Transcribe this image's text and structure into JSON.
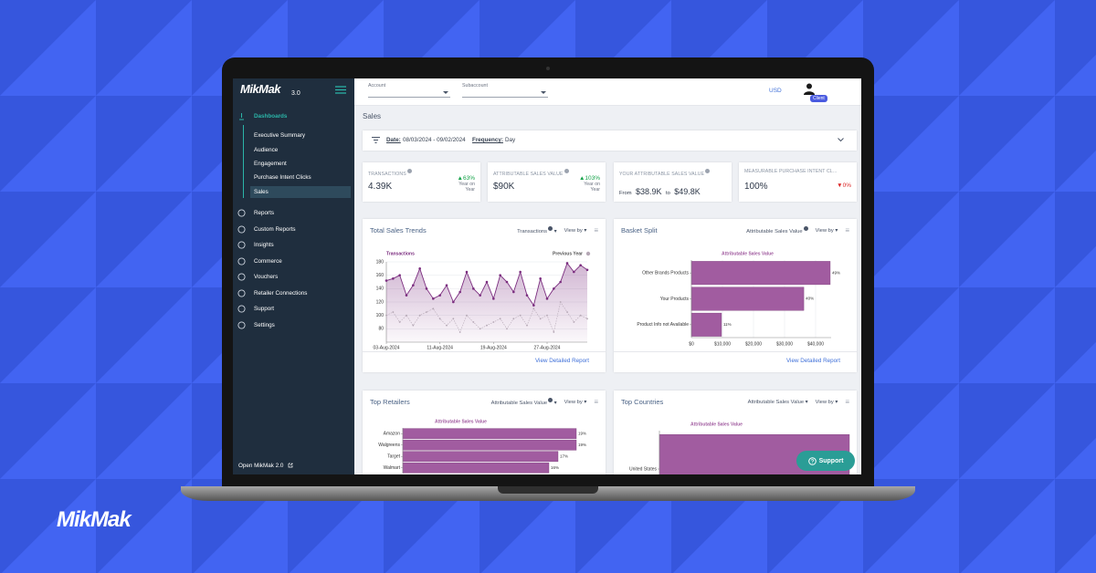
{
  "brand": {
    "logo": "MikMak",
    "version": "3.0",
    "footer_logo": "MikMak"
  },
  "sidebar": {
    "section": "Dashboards",
    "subitems": [
      "Executive Summary",
      "Audience",
      "Engagement",
      "Purchase Intent Clicks",
      "Sales"
    ],
    "items": [
      "Reports",
      "Custom Reports",
      "Insights",
      "Commerce",
      "Vouchers",
      "Retailer Connections",
      "Support",
      "Settings"
    ],
    "footer": "Open MikMak 2.0"
  },
  "topbar": {
    "account": "Account",
    "subaccount": "Subaccount",
    "currency": "USD",
    "user_badge": "Client"
  },
  "page": {
    "title": "Sales",
    "filter": {
      "date_label": "Date:",
      "date": "08/03/2024 - 09/02/2024",
      "frequency_label": "Frequency:",
      "frequency": "Day"
    }
  },
  "kpis": [
    {
      "label": "TRANSACTIONS",
      "value": "4.39K",
      "change": "63%",
      "change_note": "Year on Year"
    },
    {
      "label": "ATTRIBUTABLE SALES VALUE",
      "value": "$90K",
      "change": "103%",
      "change_note": "Year on Year"
    },
    {
      "label": "YOUR ATTRIBUTABLE SALES VALUE",
      "from_label": "From",
      "from": "$38.9K",
      "to_label": "to",
      "to": "$49.8K"
    },
    {
      "label": "MEASURABLE PURCHASE INTENT CL...",
      "value": "100%",
      "change": "0%"
    }
  ],
  "cards": [
    {
      "title": "Total Sales Trends",
      "metric": "Transactions",
      "view_by": "View by",
      "link": "View Detailed Report"
    },
    {
      "title": "Basket Split",
      "metric": "Attributable Sales Value",
      "view_by": "View by",
      "link": "View Detailed Report"
    },
    {
      "title": "Top Retailers",
      "metric": "Attributable Sales Value",
      "view_by": "View by"
    },
    {
      "title": "Top Countries",
      "metric": "Attributable Sales Value",
      "view_by": "View by"
    }
  ],
  "support_button": "Support",
  "chart_data": [
    {
      "type": "line",
      "categories": [
        "03-Aug-2024",
        null,
        null,
        null,
        null,
        null,
        null,
        null,
        "11-Aug-2024",
        null,
        null,
        null,
        null,
        null,
        null,
        null,
        "19-Aug-2024",
        null,
        null,
        null,
        null,
        null,
        null,
        null,
        "27-Aug-2024",
        null,
        null,
        null,
        null,
        null,
        null
      ],
      "series": [
        {
          "name": "Transactions",
          "color": "#7b2d7f",
          "area": true,
          "values": [
            152,
            155,
            160,
            130,
            145,
            170,
            140,
            125,
            130,
            145,
            120,
            135,
            165,
            140,
            130,
            150,
            125,
            160,
            150,
            135,
            165,
            130,
            115,
            155,
            125,
            140,
            150,
            178,
            165,
            175,
            168
          ]
        },
        {
          "name": "Previous Year",
          "color": "#b5a8b5",
          "line_style": "dotted",
          "values": [
            100,
            105,
            90,
            100,
            85,
            100,
            105,
            110,
            95,
            85,
            95,
            75,
            100,
            90,
            80,
            85,
            90,
            95,
            80,
            95,
            100,
            85,
            110,
            95,
            100,
            75,
            120,
            105,
            90,
            100,
            95
          ]
        }
      ],
      "ylim": [
        60,
        180
      ],
      "yticks": [
        80,
        100,
        120,
        140,
        160,
        180
      ],
      "grid": true
    },
    {
      "type": "bar",
      "orientation": "horizontal",
      "title": "Attributable Sales Value",
      "color": "#a15ca0",
      "categories": [
        "Other Brands Products",
        "Your Products",
        "Product Info not Available"
      ],
      "values": [
        44700,
        36200,
        9700
      ],
      "share_labels": [
        "49%",
        "40%",
        "11%"
      ],
      "xlim": [
        0,
        45000
      ],
      "xticks": [
        {
          "value": 0,
          "label": "$0"
        },
        {
          "value": 10000,
          "label": "$10,000"
        },
        {
          "value": 20000,
          "label": "$20,000"
        },
        {
          "value": 30000,
          "label": "$30,000"
        },
        {
          "value": 40000,
          "label": "$40,000"
        }
      ],
      "grid": true
    },
    {
      "type": "bar",
      "orientation": "horizontal",
      "title": "Attributable Sales Value",
      "color": "#a15ca0",
      "categories": [
        "Amazon",
        "Walgreens",
        "Target",
        "Walmart"
      ],
      "values": [
        19,
        19,
        17,
        16
      ],
      "value_labels": [
        "19%",
        "19%",
        "17%",
        "16%"
      ],
      "xlim": [
        0,
        20
      ]
    },
    {
      "type": "bar",
      "orientation": "horizontal",
      "title": "Attributable Sales Value",
      "color": "#a15ca0",
      "categories": [
        "United States"
      ],
      "values": [
        100
      ],
      "xlim": [
        0,
        100
      ]
    }
  ]
}
